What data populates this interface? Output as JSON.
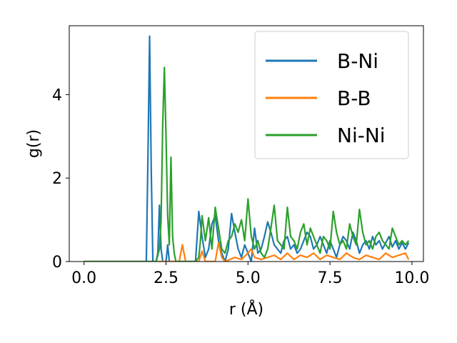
{
  "chart_data": {
    "type": "line",
    "xlabel": "r (Å)",
    "ylabel": "g(r)",
    "xlim": [
      -0.45,
      10.35
    ],
    "ylim": [
      0,
      5.65
    ],
    "xticks": [
      0.0,
      2.5,
      5.0,
      7.5,
      10.0
    ],
    "xtick_labels": [
      "0.0",
      "2.5",
      "5.0",
      "7.5",
      "10.0"
    ],
    "yticks": [
      0,
      2,
      4
    ],
    "ytick_labels": [
      "0",
      "2",
      "4"
    ],
    "grid": false,
    "legend_position": "top-right",
    "series": [
      {
        "name": "B-Ni",
        "color": "#1f77b4",
        "x": [
          0,
          1.9,
          1.95,
          2.0,
          2.05,
          2.1,
          2.15,
          2.2,
          2.25,
          2.3,
          2.35,
          2.4,
          2.45,
          2.5,
          2.55,
          2.6,
          2.65,
          2.7,
          2.75,
          3.4,
          3.5,
          3.6,
          3.7,
          3.8,
          3.9,
          4.0,
          4.1,
          4.2,
          4.3,
          4.4,
          4.5,
          4.6,
          4.7,
          4.8,
          4.9,
          5.0,
          5.1,
          5.2,
          5.3,
          5.4,
          5.5,
          5.6,
          5.7,
          5.8,
          5.9,
          6.0,
          6.1,
          6.2,
          6.3,
          6.4,
          6.5,
          6.6,
          6.7,
          6.8,
          6.9,
          7.0,
          7.1,
          7.2,
          7.3,
          7.4,
          7.5,
          7.6,
          7.7,
          7.8,
          7.9,
          8.0,
          8.1,
          8.2,
          8.3,
          8.4,
          8.5,
          8.6,
          8.7,
          8.8,
          8.9,
          9.0,
          9.1,
          9.2,
          9.3,
          9.4,
          9.5,
          9.6,
          9.7,
          9.8,
          9.9
        ],
        "y": [
          0,
          0,
          2.5,
          5.4,
          2.2,
          0,
          0,
          0,
          0.2,
          1.35,
          0.3,
          0,
          0,
          0,
          0.4,
          0,
          0,
          0,
          0,
          0,
          1.2,
          0.6,
          0.1,
          0.3,
          0.9,
          1.1,
          0.5,
          0.2,
          0,
          0.3,
          1.15,
          0.7,
          0.3,
          0.1,
          0.4,
          0.2,
          0,
          0.8,
          0.2,
          0.3,
          0.6,
          0.95,
          0.7,
          0.4,
          0.3,
          0.2,
          0.5,
          0.6,
          0.3,
          0.4,
          0.2,
          0.3,
          0.5,
          0.7,
          0.6,
          0.3,
          0.4,
          0.6,
          0.4,
          0.2,
          0.5,
          0.3,
          0.1,
          0.4,
          0.6,
          0.5,
          0.3,
          0.7,
          0.5,
          0.2,
          0.4,
          0.5,
          0.3,
          0.6,
          0.4,
          0.5,
          0.3,
          0.45,
          0.6,
          0.35,
          0.5,
          0.3,
          0.45,
          0.3,
          0.45
        ]
      },
      {
        "name": "B-B",
        "color": "#ff7f0e",
        "x": [
          0,
          2.9,
          3.0,
          3.1,
          3.2,
          3.5,
          3.6,
          3.7,
          4.0,
          4.1,
          4.2,
          4.3,
          4.6,
          4.8,
          5.0,
          5.1,
          5.2,
          5.4,
          5.6,
          5.8,
          6.0,
          6.2,
          6.4,
          6.6,
          6.8,
          7.0,
          7.2,
          7.4,
          7.6,
          7.8,
          8.0,
          8.2,
          8.4,
          8.6,
          8.8,
          9.0,
          9.2,
          9.4,
          9.6,
          9.8,
          9.9
        ],
        "y": [
          0,
          0,
          0.4,
          0,
          0,
          0,
          0.25,
          0,
          0,
          0.45,
          0.1,
          0,
          0.1,
          0.05,
          0.2,
          0.3,
          0.1,
          0.05,
          0.1,
          0.15,
          0.05,
          0.2,
          0.05,
          0.15,
          0.1,
          0.2,
          0.05,
          0.15,
          0.1,
          0.05,
          0.2,
          0.1,
          0.05,
          0.15,
          0.1,
          0.05,
          0.2,
          0.1,
          0.15,
          0.2,
          0.05
        ]
      },
      {
        "name": "Ni-Ni",
        "color": "#2ca02c",
        "x": [
          0,
          2.2,
          2.3,
          2.35,
          2.4,
          2.45,
          2.5,
          2.55,
          2.6,
          2.65,
          2.7,
          2.75,
          2.8,
          2.85,
          3.4,
          3.5,
          3.55,
          3.6,
          3.7,
          3.8,
          3.9,
          4.0,
          4.1,
          4.2,
          4.3,
          4.4,
          4.5,
          4.6,
          4.7,
          4.8,
          4.9,
          5.0,
          5.1,
          5.2,
          5.3,
          5.4,
          5.5,
          5.6,
          5.7,
          5.8,
          5.9,
          6.0,
          6.1,
          6.2,
          6.3,
          6.4,
          6.5,
          6.6,
          6.7,
          6.8,
          6.9,
          7.0,
          7.1,
          7.2,
          7.3,
          7.4,
          7.5,
          7.6,
          7.7,
          7.8,
          7.9,
          8.0,
          8.1,
          8.2,
          8.3,
          8.4,
          8.5,
          8.6,
          8.7,
          8.8,
          8.9,
          9.0,
          9.1,
          9.2,
          9.3,
          9.4,
          9.5,
          9.6,
          9.7,
          9.8,
          9.9
        ],
        "y": [
          0,
          0,
          0.3,
          1.0,
          3.3,
          4.65,
          3.0,
          1.1,
          0.4,
          2.5,
          0.6,
          0.2,
          0,
          0,
          0,
          0.1,
          0.5,
          1.1,
          0.5,
          1.05,
          0.3,
          1.3,
          0.8,
          0.3,
          0.2,
          0.5,
          0.6,
          0.9,
          0.7,
          1.0,
          0.5,
          1.5,
          0.6,
          0.3,
          0.5,
          0.2,
          0.1,
          0.3,
          0.8,
          1.35,
          0.5,
          0.4,
          0.3,
          1.3,
          0.6,
          0.5,
          0.3,
          0.7,
          0.9,
          0.4,
          0.8,
          0.6,
          0.4,
          0.2,
          0.6,
          0.5,
          0.3,
          1.2,
          0.7,
          0.4,
          0.5,
          0.3,
          0.9,
          0.6,
          0.4,
          1.25,
          0.7,
          0.4,
          0.5,
          0.3,
          0.6,
          0.7,
          0.5,
          0.4,
          0.3,
          0.8,
          0.6,
          0.4,
          0.5,
          0.4,
          0.5
        ]
      }
    ]
  }
}
